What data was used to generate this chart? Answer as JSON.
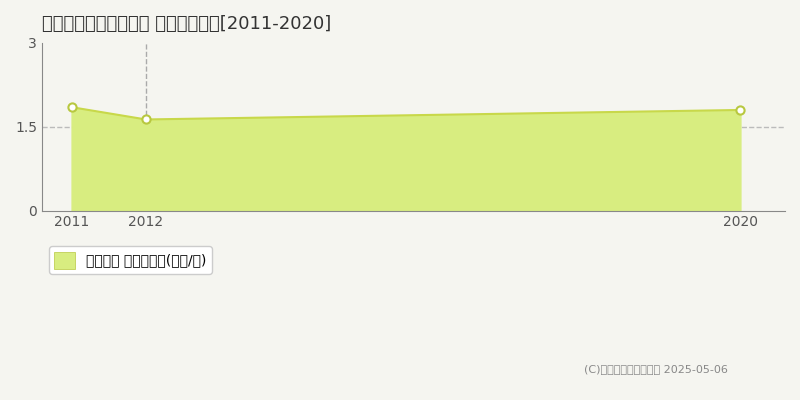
{
  "title": "新潟市秋葉区小戸下組 土地価格推移[2011-2020]",
  "years": [
    2011,
    2012,
    2020
  ],
  "values": [
    1.85,
    1.63,
    1.8
  ],
  "line_color": "#c8d84a",
  "fill_color": "#d8ed80",
  "marker_color": "#ffffff",
  "marker_edge_color": "#b8c840",
  "ylim": [
    0,
    3.0
  ],
  "yticks": [
    0,
    1.5,
    3
  ],
  "xticks": [
    2011,
    2012,
    2020
  ],
  "grid_color": "#bbbbbb",
  "bg_color": "#f5f5f0",
  "legend_label": "土地価格 平均坪単価(万円/坪)",
  "copyright": "(C)土地価格ドットコム 2025-05-06",
  "title_fontsize": 13,
  "axis_fontsize": 10,
  "legend_fontsize": 10,
  "vline_x": 2012,
  "vline_color": "#aaaaaa",
  "spine_color": "#888888"
}
